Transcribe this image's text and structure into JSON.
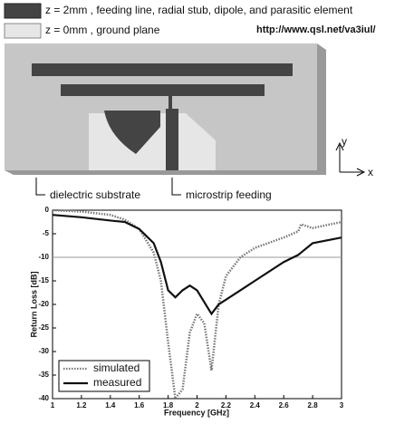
{
  "diagram": {
    "legend": [
      "z = 2mm , feeding line, radial stub, dipole, and parasitic element",
      "z = 0mm , ground plane"
    ],
    "url": "http://www.qsl.net/va3iul/",
    "axis_labels": {
      "y": "y",
      "x": "x"
    },
    "callouts": [
      "dielectric substrate",
      "microstrip feeding"
    ]
  },
  "chart_data": {
    "type": "line",
    "xlabel": "Frequency [GHz]",
    "ylabel": "Return Loss [dB]",
    "x": [
      1,
      1.2,
      1.4,
      1.5,
      1.6,
      1.7,
      1.75,
      1.8,
      1.85,
      1.9,
      1.95,
      2,
      2.05,
      2.1,
      2.15,
      2.2,
      2.3,
      2.4,
      2.6,
      2.7,
      2.72,
      2.8,
      3
    ],
    "series": [
      {
        "name": "simulated",
        "color": "#777777",
        "dash": "dotted",
        "values": [
          0,
          -0.3,
          -1,
          -2,
          -4,
          -9,
          -15,
          -28,
          -40,
          -38,
          -26,
          -22,
          -24,
          -34,
          -20,
          -14,
          -10,
          -8,
          -5.8,
          -4.5,
          -3,
          -3.8,
          -2.5
        ]
      },
      {
        "name": "measured",
        "color": "#111111",
        "dash": "solid",
        "values": [
          -1,
          -1.5,
          -2.2,
          -2.5,
          -4,
          -7,
          -11,
          -17,
          -18.5,
          -17,
          -16,
          -17,
          -19.5,
          -22,
          -20,
          -19,
          -17,
          -15,
          -11,
          -9.5,
          -9,
          -7,
          -5.8
        ]
      }
    ],
    "xlim": [
      1,
      3
    ],
    "xticks": [
      1,
      1.2,
      1.4,
      1.6,
      1.8,
      2,
      2.2,
      2.4,
      2.6,
      2.8,
      3
    ],
    "ylim": [
      -40,
      0
    ],
    "yticks": [
      0,
      -5,
      -10,
      -15,
      -20,
      -25,
      -30,
      -35,
      -40
    ],
    "reference_line": -10,
    "grid": false,
    "legend_position": "lower left"
  }
}
